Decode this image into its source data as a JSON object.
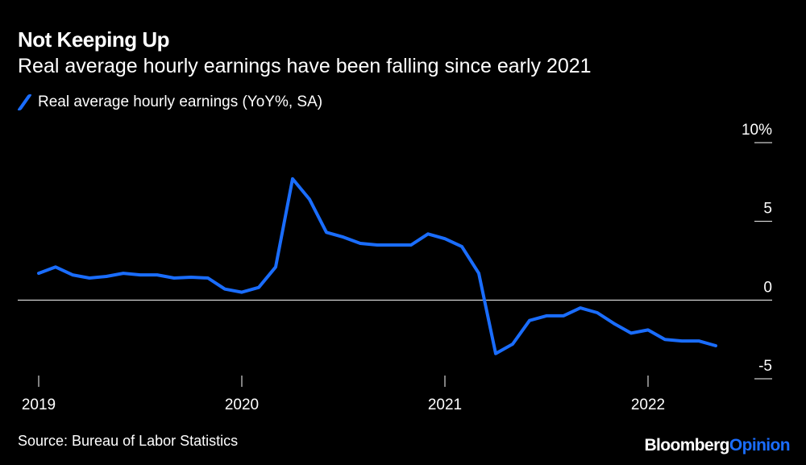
{
  "title": "Not Keeping Up",
  "subtitle": "Real average hourly earnings have been falling since early 2021",
  "source": "Source: Bureau of Labor Statistics",
  "logo": {
    "brand": "Bloomberg",
    "suffix": "Opinion"
  },
  "colors": {
    "background": "#000000",
    "line": "#1a6dff",
    "text": "#ffffff",
    "zero_line": "#ffffff"
  },
  "chart_data": {
    "type": "line",
    "title": "Not Keeping Up",
    "subtitle": "Real average hourly earnings have been falling since early 2021",
    "ylim": [
      -5,
      10
    ],
    "y_ticks": [
      {
        "value": 10,
        "label": "10%"
      },
      {
        "value": 5,
        "label": "5"
      },
      {
        "value": 0,
        "label": "0"
      },
      {
        "value": -5,
        "label": "-5"
      }
    ],
    "x_ticks": [
      "2019",
      "2020",
      "2021",
      "2022"
    ],
    "zero_line": true,
    "grid": false,
    "legend_position": "top-left",
    "series": [
      {
        "name": "Real average hourly earnings (YoY%, SA)",
        "color": "#1a6dff",
        "x": [
          "2019-01",
          "2019-02",
          "2019-03",
          "2019-04",
          "2019-05",
          "2019-06",
          "2019-07",
          "2019-08",
          "2019-09",
          "2019-10",
          "2019-11",
          "2019-12",
          "2020-01",
          "2020-02",
          "2020-03",
          "2020-04",
          "2020-05",
          "2020-06",
          "2020-07",
          "2020-08",
          "2020-09",
          "2020-10",
          "2020-11",
          "2020-12",
          "2021-01",
          "2021-02",
          "2021-03",
          "2021-04",
          "2021-05",
          "2021-06",
          "2021-07",
          "2021-08",
          "2021-09",
          "2021-10",
          "2021-11",
          "2021-12",
          "2022-01",
          "2022-02",
          "2022-03",
          "2022-04",
          "2022-05"
        ],
        "values": [
          1.7,
          2.1,
          1.6,
          1.4,
          1.5,
          1.7,
          1.6,
          1.6,
          1.4,
          1.45,
          1.4,
          0.7,
          0.5,
          0.8,
          2.1,
          7.7,
          6.4,
          4.3,
          4.0,
          3.6,
          3.5,
          3.5,
          3.5,
          4.2,
          3.9,
          3.4,
          1.7,
          -3.4,
          -2.8,
          -1.3,
          -1.0,
          -1.0,
          -0.5,
          -0.8,
          -1.5,
          -2.1,
          -1.9,
          -2.5,
          -2.6,
          -2.6,
          -2.9
        ]
      }
    ]
  }
}
